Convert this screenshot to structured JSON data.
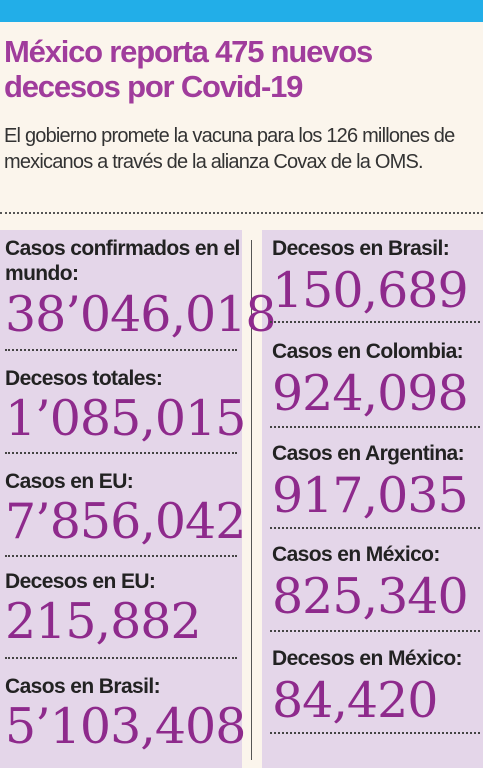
{
  "headline": "México reporta 475 nuevos decesos por Covid-19",
  "lede": "El gobierno promete la vacuna para los 126 millones de mexicanos a través de la alianza Covax de la OMS.",
  "colors": {
    "accent_bar": "#22aee8",
    "headline": "#a03c9c",
    "value": "#8e2a8c",
    "panel": "#e4d6e9",
    "background": "#fbf5ec"
  },
  "left": [
    {
      "label": "Casos confirmados en el mundo:",
      "value": "38’046,018"
    },
    {
      "label": "Decesos totales:",
      "value": "1’085,015"
    },
    {
      "label": "Casos en EU:",
      "value": "7’856,042"
    },
    {
      "label": "Decesos en EU:",
      "value": "215,882"
    },
    {
      "label": "Casos en Brasil:",
      "value": "5’103,408"
    }
  ],
  "right": [
    {
      "label": "Decesos en Brasil:",
      "value": "150,689"
    },
    {
      "label": "Casos en Colombia:",
      "value": "924,098"
    },
    {
      "label": "Casos en Argentina:",
      "value": "917,035"
    },
    {
      "label": "Casos en México:",
      "value": "825,340"
    },
    {
      "label": "Decesos en México:",
      "value": "84,420"
    }
  ]
}
